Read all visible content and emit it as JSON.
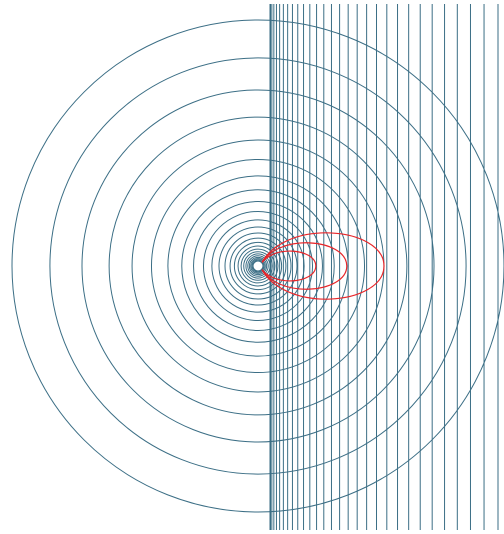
{
  "colors": {
    "background": "#ffffff",
    "field_lines": "#3b6e85",
    "loops": "#e8262a"
  },
  "diagram": {
    "concentric_circles": {
      "count": 25,
      "min_radius_ratio": 0.018,
      "max_radius_ratio": 1.0,
      "spacing": "geometric"
    },
    "vertical_lines": {
      "count": 30,
      "spacing": "increasing-to-the-right"
    },
    "loops": {
      "count": 3,
      "relative_sizes": [
        0.45,
        0.7,
        1.0
      ]
    }
  }
}
